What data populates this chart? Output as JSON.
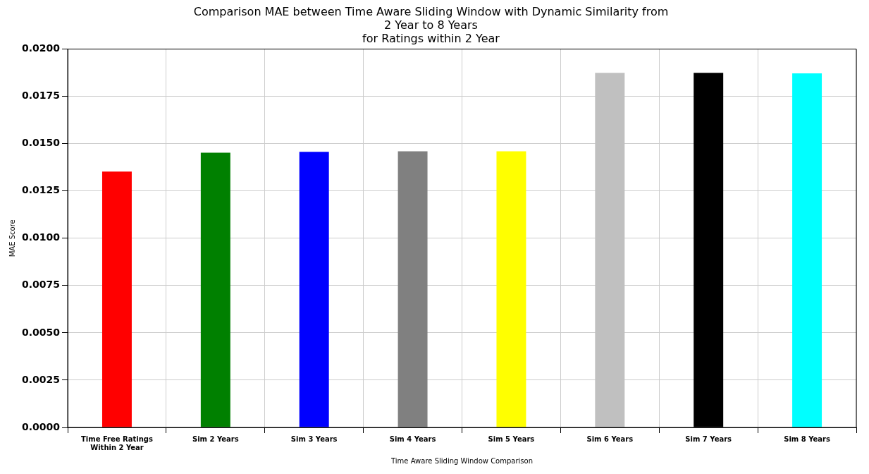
{
  "chart_data": {
    "type": "bar",
    "title": "Comparison MAE between Time Aware Sliding Window with Dynamic Similarity from\n2 Year to 8 Years\nfor Ratings within 2 Year",
    "xlabel": "Time Aware Sliding Window Comparison",
    "ylabel": "MAE Score",
    "categories": [
      "Time Free Ratings\nWithin 2 Year",
      "Sim 2 Years",
      "Sim 3 Years",
      "Sim 4 Years",
      "Sim 5 Years",
      "Sim 6 Years",
      "Sim 7 Years",
      "Sim 8 Years"
    ],
    "values": [
      0.01353,
      0.01452,
      0.01457,
      0.0146,
      0.0146,
      0.01875,
      0.01875,
      0.01872
    ],
    "colors": [
      "#ff0000",
      "#008000",
      "#0000ff",
      "#808080",
      "#ffff00",
      "#c0c0c0",
      "#000000",
      "#00ffff"
    ],
    "ylim": [
      0,
      0.02
    ],
    "yticks": [
      {
        "value": 0,
        "label": "0.0000"
      },
      {
        "value": 0.0025,
        "label": "0.0025"
      },
      {
        "value": 0.005,
        "label": "0.0050"
      },
      {
        "value": 0.0075,
        "label": "0.0075"
      },
      {
        "value": 0.01,
        "label": "0.0100"
      },
      {
        "value": 0.0125,
        "label": "0.0125"
      },
      {
        "value": 0.015,
        "label": "0.0150"
      },
      {
        "value": 0.0175,
        "label": "0.0175"
      },
      {
        "value": 0.02,
        "label": "0.0200"
      }
    ],
    "grid": true,
    "legend": false
  }
}
